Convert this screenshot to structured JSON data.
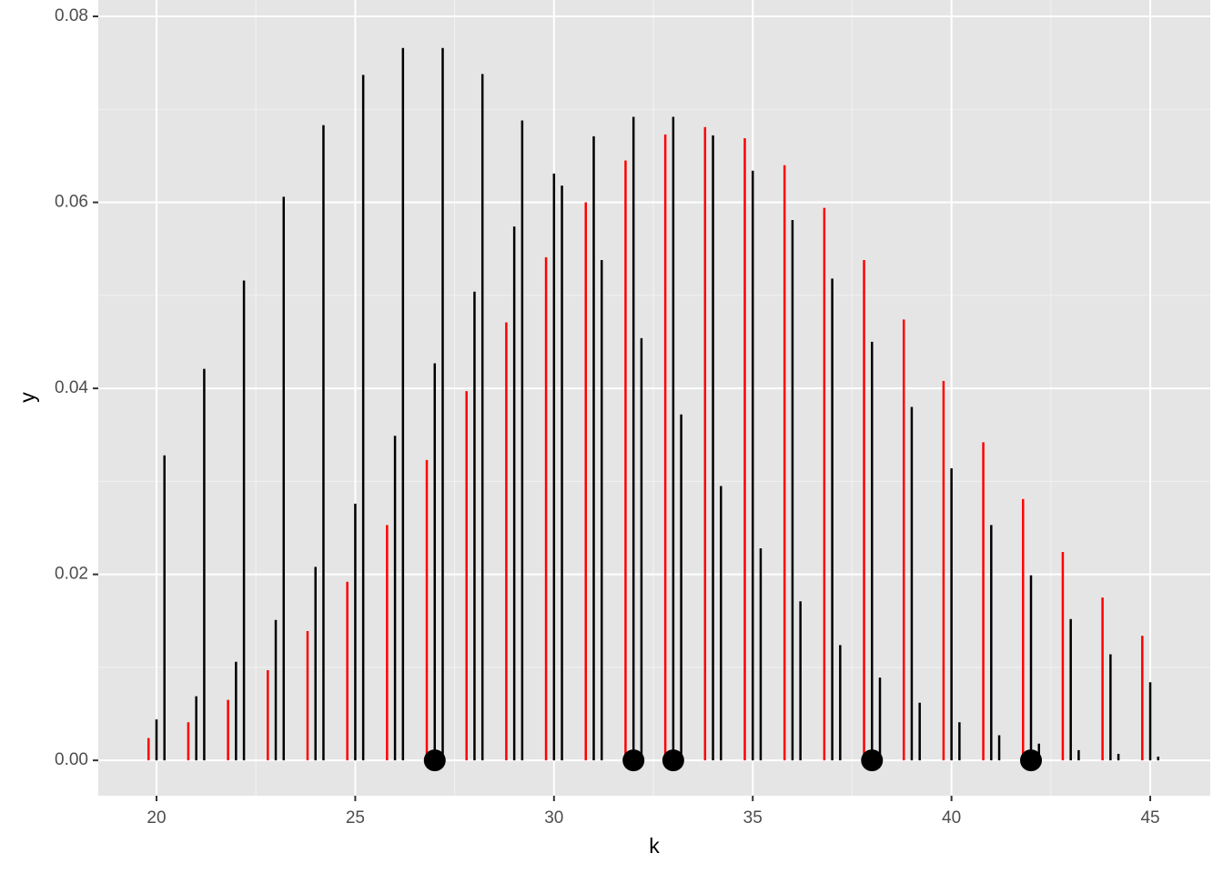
{
  "chart_data": {
    "type": "segment",
    "xlabel": "k",
    "ylabel": "y",
    "x": [
      20,
      21,
      22,
      23,
      24,
      25,
      26,
      27,
      28,
      29,
      30,
      31,
      32,
      33,
      34,
      35,
      36,
      37,
      38,
      39,
      40,
      41,
      42,
      43,
      44,
      45
    ],
    "series": [
      {
        "color": "#ff0000",
        "values": [
          0.0024,
          0.0041,
          0.0065,
          0.0097,
          0.0139,
          0.0192,
          0.0253,
          0.0323,
          0.0397,
          0.0471,
          0.0541,
          0.06,
          0.0645,
          0.0673,
          0.0681,
          0.0669,
          0.064,
          0.0594,
          0.0538,
          0.0474,
          0.0408,
          0.0342,
          0.0281,
          0.0224,
          0.0175,
          0.0134
        ]
      },
      {
        "color": "#000000",
        "values": [
          0.0044,
          0.0069,
          0.0106,
          0.0151,
          0.0208,
          0.0276,
          0.0349,
          0.0427,
          0.0504,
          0.0574,
          0.0631,
          0.0671,
          0.0692,
          0.0692,
          0.0672,
          0.0634,
          0.0581,
          0.0518,
          0.045,
          0.038,
          0.0314,
          0.0253,
          0.0199,
          0.0152,
          0.0114,
          0.0084
        ]
      },
      {
        "color": "#000000",
        "values": [
          0.0328,
          0.0421,
          0.0516,
          0.0606,
          0.0683,
          0.0737,
          0.0766,
          0.0766,
          0.0738,
          0.0688,
          0.0618,
          0.0538,
          0.0454,
          0.0372,
          0.0295,
          0.0228,
          0.0171,
          0.0124,
          0.0089,
          0.0062,
          0.0041,
          0.0027,
          0.0018,
          0.0011,
          0.0007,
          0.0004
        ]
      }
    ],
    "points": {
      "color": "#000000",
      "x": [
        27,
        32,
        33,
        38,
        42
      ],
      "values": [
        0,
        0,
        0,
        0,
        0
      ]
    },
    "xlim": [
      18.535,
      46.51
    ],
    "ylim": [
      -0.0038,
      0.08176
    ],
    "xticks": [
      20,
      25,
      30,
      35,
      40,
      45
    ],
    "yticks": [
      {
        "value": 0,
        "label": "0.00"
      },
      0.02,
      0.04,
      0.06,
      0.08
    ],
    "grid": true
  }
}
